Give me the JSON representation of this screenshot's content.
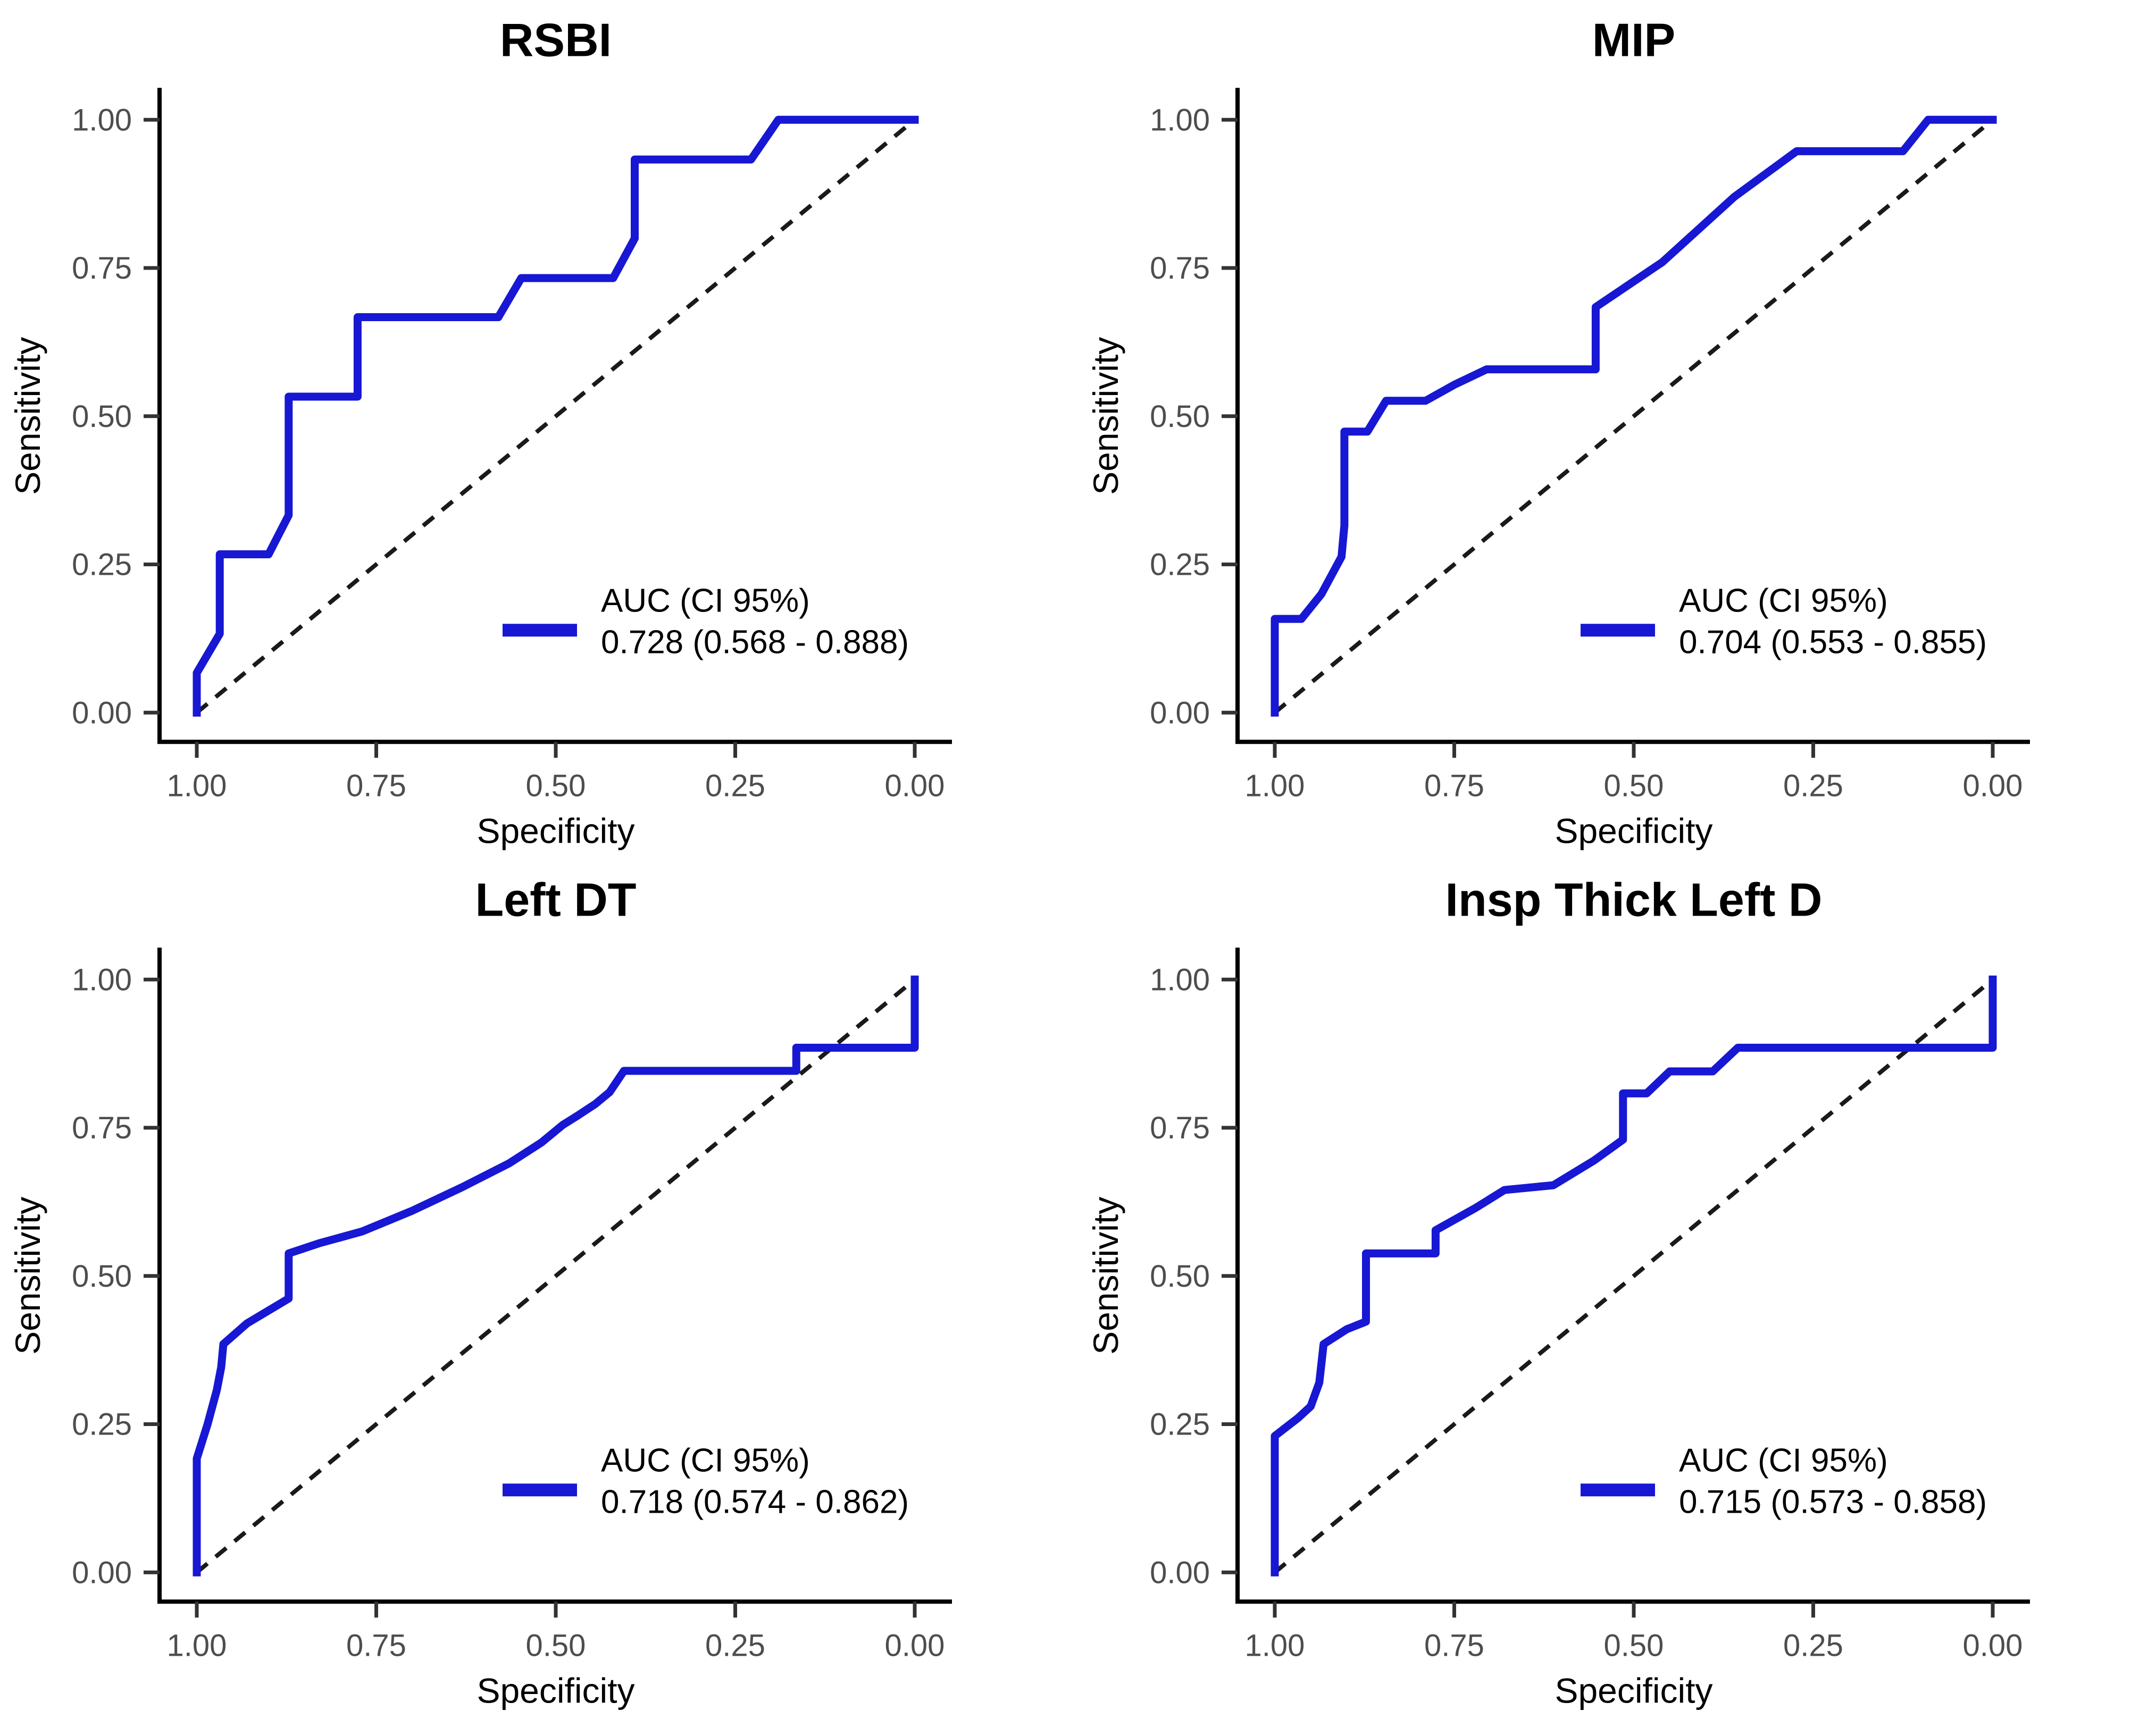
{
  "figure": {
    "layout": "2x2-roc-panels",
    "colors": {
      "curve": "#1717d4",
      "diagonal": "#1a1a1a",
      "tick_text": "#4d4d4d",
      "axis": "#000000",
      "background": "#ffffff"
    }
  },
  "chart_data": [
    {
      "type": "line",
      "title": "RSBI",
      "xlabel": "Specificity",
      "ylabel": "Sensitivity",
      "x_axis": {
        "label": "Specificity",
        "range": [
          1.0,
          0.0
        ],
        "reversed": true,
        "tick_values": [
          1.0,
          0.75,
          0.5,
          0.25,
          0.0
        ],
        "tick_labels": [
          "1.00",
          "0.75",
          "0.50",
          "0.25",
          "0.00"
        ]
      },
      "y_axis": {
        "label": "Sensitivity",
        "range": [
          0.0,
          1.0
        ],
        "tick_values": [
          0.0,
          0.25,
          0.5,
          0.75,
          1.0
        ],
        "tick_labels": [
          "0.00",
          "0.25",
          "0.50",
          "0.75",
          "1.00"
        ]
      },
      "legend_label": "AUC (CI 95%)",
      "auc_text": "0.728 (0.568 - 0.888)",
      "auc": 0.728,
      "ci_low": 0.568,
      "ci_high": 0.888,
      "diagonal_reference": true,
      "grid": false,
      "legend_position": "bottom-right",
      "roc_points": [
        [
          1.0,
          0.0
        ],
        [
          1.0,
          0.067
        ],
        [
          0.968,
          0.133
        ],
        [
          0.968,
          0.267
        ],
        [
          0.9,
          0.267
        ],
        [
          0.872,
          0.333
        ],
        [
          0.872,
          0.533
        ],
        [
          0.776,
          0.533
        ],
        [
          0.776,
          0.667
        ],
        [
          0.58,
          0.667
        ],
        [
          0.548,
          0.733
        ],
        [
          0.42,
          0.733
        ],
        [
          0.39,
          0.8
        ],
        [
          0.39,
          0.933
        ],
        [
          0.228,
          0.933
        ],
        [
          0.19,
          1.0
        ],
        [
          0.0,
          1.0
        ]
      ]
    },
    {
      "type": "line",
      "title": "MIP",
      "xlabel": "Specificity",
      "ylabel": "Sensitivity",
      "x_axis": {
        "label": "Specificity",
        "range": [
          1.0,
          0.0
        ],
        "reversed": true,
        "tick_values": [
          1.0,
          0.75,
          0.5,
          0.25,
          0.0
        ],
        "tick_labels": [
          "1.00",
          "0.75",
          "0.50",
          "0.25",
          "0.00"
        ]
      },
      "y_axis": {
        "label": "Sensitivity",
        "range": [
          0.0,
          1.0
        ],
        "tick_values": [
          0.0,
          0.25,
          0.5,
          0.75,
          1.0
        ],
        "tick_labels": [
          "0.00",
          "0.25",
          "0.50",
          "0.75",
          "1.00"
        ]
      },
      "legend_label": "AUC (CI 95%)",
      "auc_text": "0.704 (0.553 - 0.855)",
      "auc": 0.704,
      "ci_low": 0.553,
      "ci_high": 0.855,
      "diagonal_reference": true,
      "grid": false,
      "legend_position": "bottom-right",
      "roc_points": [
        [
          1.0,
          0.0
        ],
        [
          1.0,
          0.158
        ],
        [
          0.963,
          0.158
        ],
        [
          0.935,
          0.2
        ],
        [
          0.907,
          0.263
        ],
        [
          0.903,
          0.316
        ],
        [
          0.903,
          0.474
        ],
        [
          0.871,
          0.474
        ],
        [
          0.845,
          0.526
        ],
        [
          0.79,
          0.526
        ],
        [
          0.75,
          0.553
        ],
        [
          0.705,
          0.579
        ],
        [
          0.553,
          0.579
        ],
        [
          0.553,
          0.684
        ],
        [
          0.46,
          0.76
        ],
        [
          0.36,
          0.87
        ],
        [
          0.273,
          0.947
        ],
        [
          0.125,
          0.947
        ],
        [
          0.09,
          1.0
        ],
        [
          0.0,
          1.0
        ]
      ]
    },
    {
      "type": "line",
      "title": "Left DT",
      "xlabel": "Specificity",
      "ylabel": "Sensitivity",
      "x_axis": {
        "label": "Specificity",
        "range": [
          1.0,
          0.0
        ],
        "reversed": true,
        "tick_values": [
          1.0,
          0.75,
          0.5,
          0.25,
          0.0
        ],
        "tick_labels": [
          "1.00",
          "0.75",
          "0.50",
          "0.25",
          "0.00"
        ]
      },
      "y_axis": {
        "label": "Sensitivity",
        "range": [
          0.0,
          1.0
        ],
        "tick_values": [
          0.0,
          0.25,
          0.5,
          0.75,
          1.0
        ],
        "tick_labels": [
          "0.00",
          "0.25",
          "0.50",
          "0.75",
          "1.00"
        ]
      },
      "legend_label": "AUC (CI 95%)",
      "auc_text": "0.718 (0.574 - 0.862)",
      "auc": 0.718,
      "ci_low": 0.574,
      "ci_high": 0.862,
      "diagonal_reference": true,
      "grid": false,
      "legend_position": "bottom-right",
      "roc_points": [
        [
          1.0,
          0.0
        ],
        [
          1.0,
          0.192
        ],
        [
          0.985,
          0.25
        ],
        [
          0.972,
          0.308
        ],
        [
          0.966,
          0.346
        ],
        [
          0.963,
          0.385
        ],
        [
          0.93,
          0.42
        ],
        [
          0.872,
          0.462
        ],
        [
          0.872,
          0.538
        ],
        [
          0.83,
          0.555
        ],
        [
          0.77,
          0.575
        ],
        [
          0.7,
          0.61
        ],
        [
          0.63,
          0.65
        ],
        [
          0.565,
          0.69
        ],
        [
          0.52,
          0.725
        ],
        [
          0.49,
          0.755
        ],
        [
          0.47,
          0.77
        ],
        [
          0.445,
          0.79
        ],
        [
          0.425,
          0.81
        ],
        [
          0.405,
          0.846
        ],
        [
          0.165,
          0.846
        ],
        [
          0.165,
          0.885
        ],
        [
          0.0,
          0.885
        ],
        [
          0.0,
          1.0
        ]
      ]
    },
    {
      "type": "line",
      "title": "Insp Thick Left D",
      "xlabel": "Specificity",
      "ylabel": "Sensitivity",
      "x_axis": {
        "label": "Specificity",
        "range": [
          1.0,
          0.0
        ],
        "reversed": true,
        "tick_values": [
          1.0,
          0.75,
          0.5,
          0.25,
          0.0
        ],
        "tick_labels": [
          "1.00",
          "0.75",
          "0.50",
          "0.25",
          "0.00"
        ]
      },
      "y_axis": {
        "label": "Sensitivity",
        "range": [
          0.0,
          1.0
        ],
        "tick_values": [
          0.0,
          0.25,
          0.5,
          0.75,
          1.0
        ],
        "tick_labels": [
          "0.00",
          "0.25",
          "0.50",
          "0.75",
          "1.00"
        ]
      },
      "legend_label": "AUC (CI 95%)",
      "auc_text": "0.715 (0.573 - 0.858)",
      "auc": 0.715,
      "ci_low": 0.573,
      "ci_high": 0.858,
      "diagonal_reference": true,
      "grid": false,
      "legend_position": "bottom-right",
      "roc_points": [
        [
          1.0,
          0.0
        ],
        [
          1.0,
          0.23
        ],
        [
          0.968,
          0.26
        ],
        [
          0.95,
          0.28
        ],
        [
          0.938,
          0.32
        ],
        [
          0.932,
          0.385
        ],
        [
          0.9,
          0.41
        ],
        [
          0.873,
          0.423
        ],
        [
          0.873,
          0.538
        ],
        [
          0.776,
          0.538
        ],
        [
          0.776,
          0.577
        ],
        [
          0.72,
          0.615
        ],
        [
          0.68,
          0.645
        ],
        [
          0.612,
          0.653
        ],
        [
          0.555,
          0.695
        ],
        [
          0.515,
          0.73
        ],
        [
          0.515,
          0.808
        ],
        [
          0.482,
          0.808
        ],
        [
          0.45,
          0.845
        ],
        [
          0.39,
          0.845
        ],
        [
          0.355,
          0.885
        ],
        [
          0.0,
          0.885
        ],
        [
          0.0,
          1.0
        ]
      ]
    }
  ]
}
